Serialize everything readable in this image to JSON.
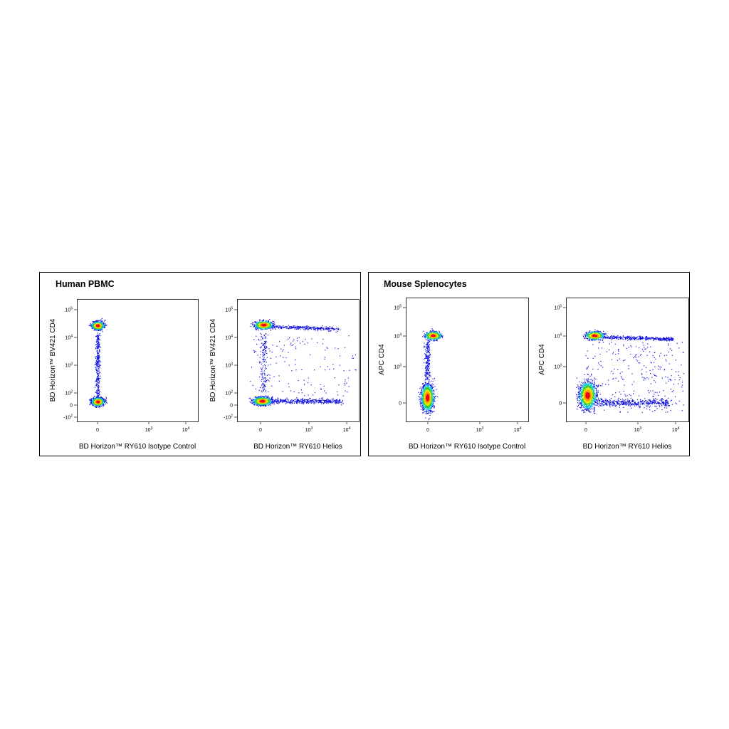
{
  "panels": [
    {
      "title": "Human PBMC",
      "plots": [
        {
          "x_label": "BD Horizon™ RY610 Isotype Control",
          "y_label": "BD Horizon™ BV421  CD4",
          "x_ticks": [
            {
              "base": "0"
            },
            {
              "base": "10",
              "exp": "3"
            },
            {
              "base": "10",
              "exp": "4"
            }
          ],
          "y_ticks": [
            {
              "base": "10",
              "exp": "5"
            },
            {
              "base": "10",
              "exp": "4"
            },
            {
              "base": "10",
              "exp": "3"
            },
            {
              "base": "10",
              "exp": "2"
            },
            {
              "base": "0"
            },
            {
              "base": "-10",
              "exp": "2"
            }
          ]
        },
        {
          "x_label": "BD Horizon™ RY610 Helios",
          "y_label": "BD Horizon™ BV421  CD4",
          "x_ticks": [
            {
              "base": "0"
            },
            {
              "base": "10",
              "exp": "3"
            },
            {
              "base": "10",
              "exp": "4"
            }
          ],
          "y_ticks": [
            {
              "base": "10",
              "exp": "5"
            },
            {
              "base": "10",
              "exp": "4"
            },
            {
              "base": "10",
              "exp": "3"
            },
            {
              "base": "10",
              "exp": "2"
            },
            {
              "base": "0"
            },
            {
              "base": "-10",
              "exp": "2"
            }
          ]
        }
      ]
    },
    {
      "title": "Mouse Splenocytes",
      "plots": [
        {
          "x_label": "BD Horizon™ RY610 Isotype Control",
          "y_label": "APC  CD4",
          "x_ticks": [
            {
              "base": "0"
            },
            {
              "base": "10",
              "exp": "3"
            },
            {
              "base": "10",
              "exp": "4"
            }
          ],
          "y_ticks": [
            {
              "base": "10",
              "exp": "5"
            },
            {
              "base": "10",
              "exp": "4"
            },
            {
              "base": "10",
              "exp": "3"
            },
            {
              "base": "0"
            }
          ]
        },
        {
          "x_label": "BD Horizon™ RY610 Helios",
          "y_label": "APC  CD4",
          "x_ticks": [
            {
              "base": "0"
            },
            {
              "base": "10",
              "exp": "3"
            },
            {
              "base": "10",
              "exp": "4"
            }
          ],
          "y_ticks": [
            {
              "base": "10",
              "exp": "5"
            },
            {
              "base": "10",
              "exp": "4"
            },
            {
              "base": "10",
              "exp": "3"
            },
            {
              "base": "0"
            }
          ]
        }
      ]
    }
  ]
}
